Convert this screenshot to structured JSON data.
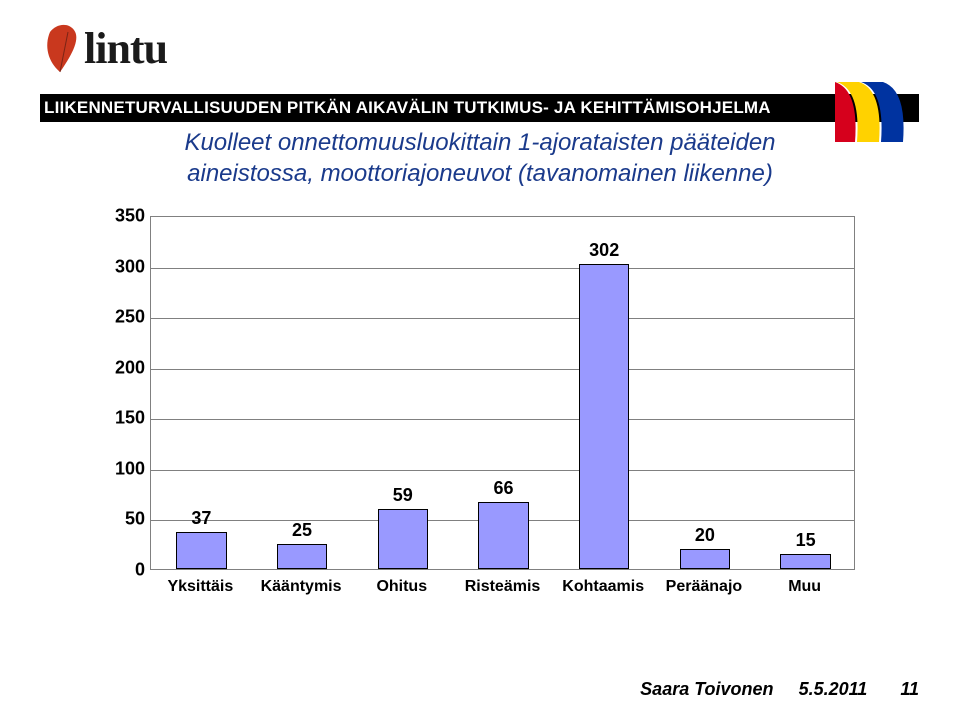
{
  "brand": {
    "word": "lintu",
    "leaf_color": "#c9381e"
  },
  "header": {
    "rule_text": "LIIKENNETURVALLISUUDEN PITKÄN AIKAVÄLIN TUTKIMUS- JA KEHITTÄMISOHJELMA",
    "rule_bg": "#000000",
    "rule_fg": "#ffffff",
    "flag_colors": [
      "#d6001c",
      "#ffd200",
      "#0033a0"
    ]
  },
  "title": {
    "line1": "Kuolleet onnettomuusluokittain 1-ajorataisten pääteiden",
    "line2": "aineistossa, moottoriajoneuvot (tavanomainen liikenne)",
    "color": "#1a3a8b",
    "fontsize": 24,
    "italic": true
  },
  "chart": {
    "type": "bar",
    "categories": [
      "Yksittäis",
      "Kääntymis",
      "Ohitus",
      "Risteämis",
      "Kohtaamis",
      "Peräänajo",
      "Muu"
    ],
    "values": [
      37,
      25,
      59,
      66,
      302,
      20,
      15
    ],
    "bar_color": "#9999ff",
    "bar_border": "#000000",
    "y_ticks": [
      0,
      50,
      100,
      150,
      200,
      250,
      300,
      350
    ],
    "ylim_min": 0,
    "ylim_max": 350,
    "grid_color": "#808080",
    "background_color": "#ffffff",
    "value_fontsize": 18,
    "tick_fontsize": 18,
    "category_fontsize": 16,
    "bar_rel_width": 0.5
  },
  "footer": {
    "author": "Saara Toivonen",
    "date": "5.5.2011",
    "page": "11"
  }
}
